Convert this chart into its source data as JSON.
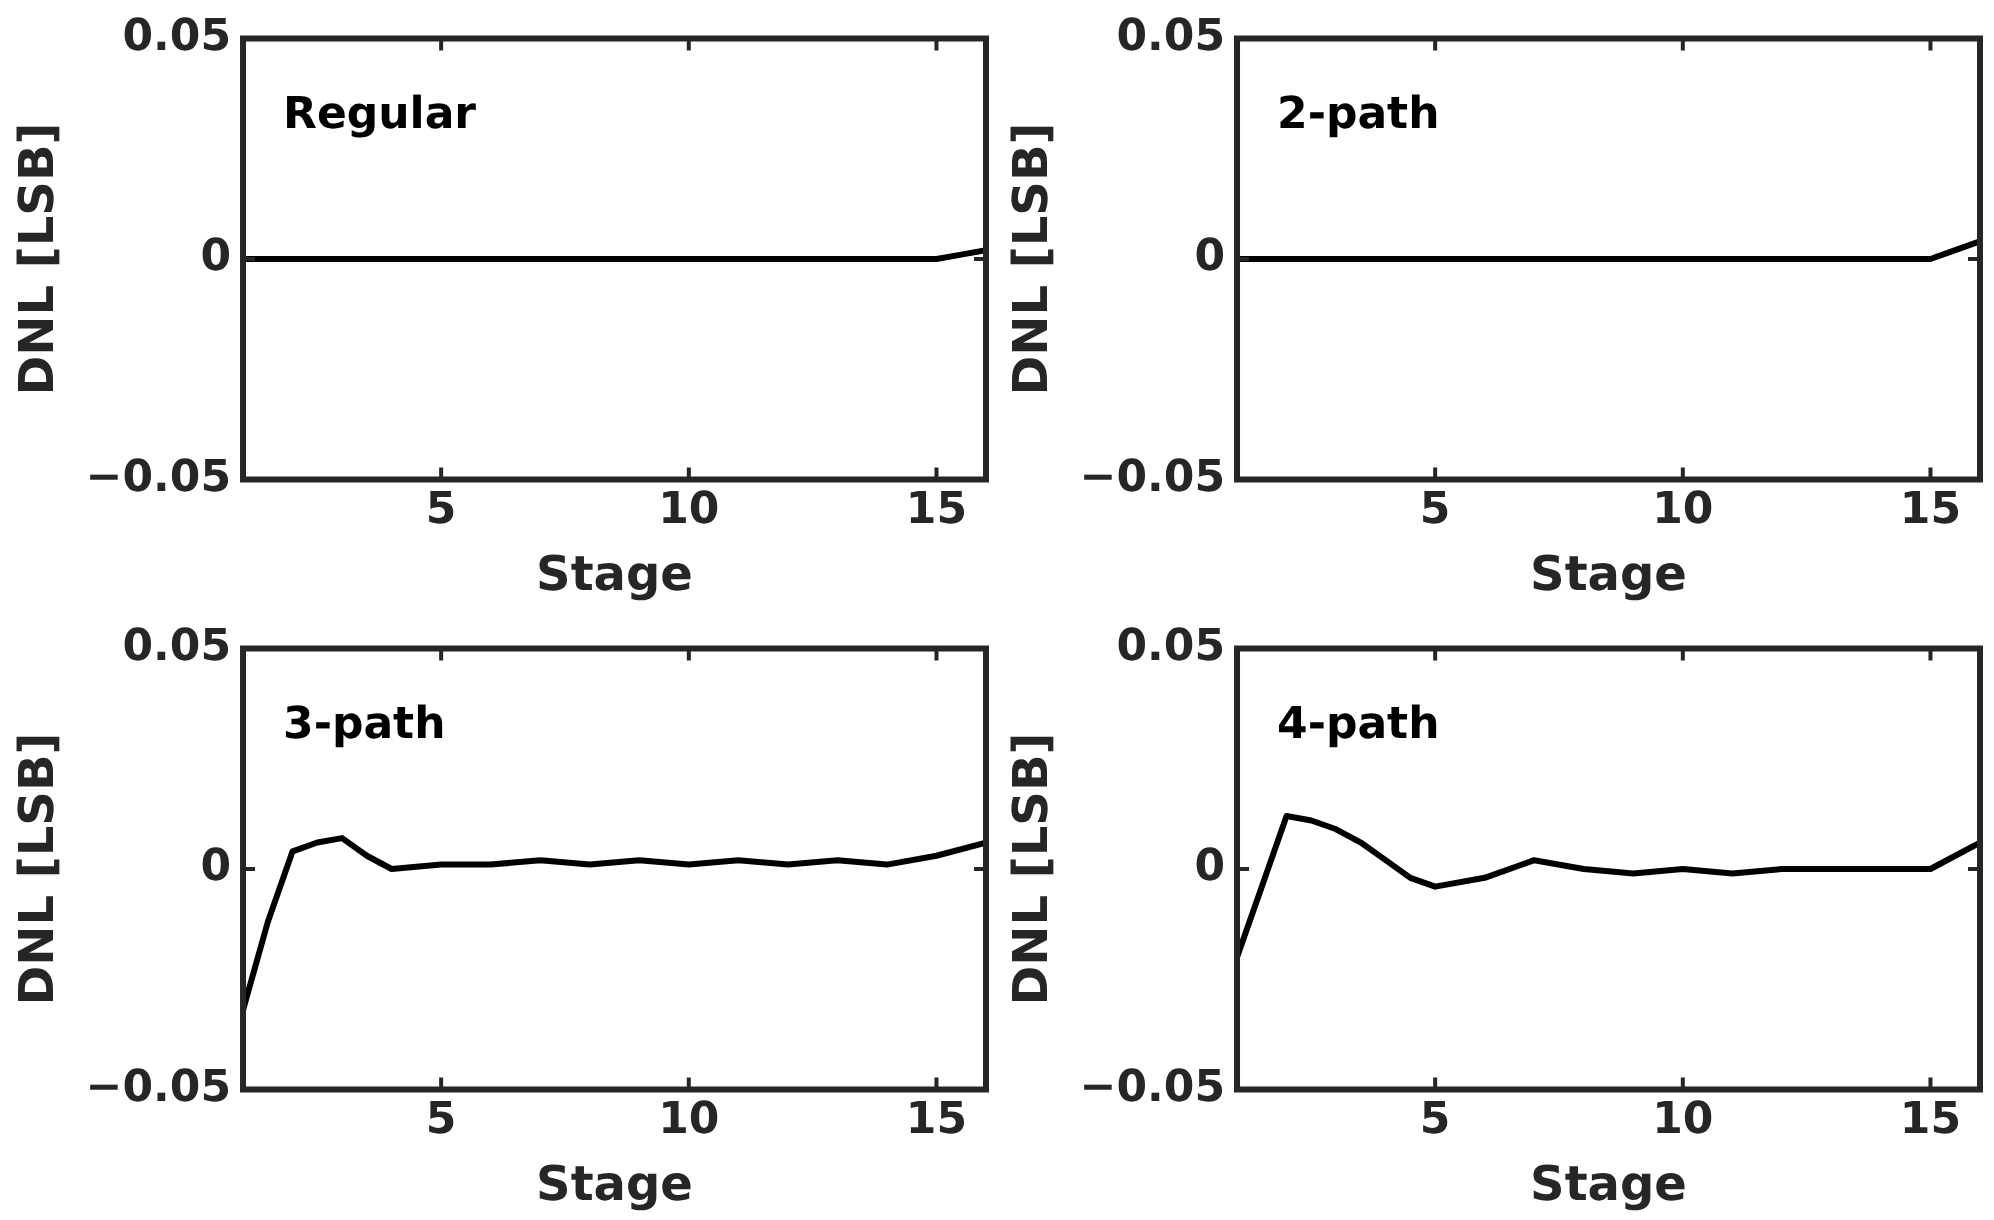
{
  "chart_data": [
    {
      "type": "line",
      "annotations": [
        "Regular"
      ],
      "xlabel": "Stage",
      "ylabel": "DNL [LSB]",
      "xlim": [
        1,
        16
      ],
      "xticks": [
        5,
        10,
        15
      ],
      "ylim": [
        -0.05,
        0.05
      ],
      "yticks": [
        -0.05,
        0,
        0.05
      ],
      "grid": false,
      "legend": false,
      "marker": "none",
      "series": [
        {
          "color": "#000000",
          "x": [
            1,
            2,
            4,
            6,
            8,
            10,
            12,
            14,
            15,
            15.5,
            16
          ],
          "values": [
            0,
            0,
            0,
            0,
            0,
            0,
            0,
            0,
            0,
            0.001,
            0.002
          ]
        }
      ]
    },
    {
      "type": "line",
      "annotations": [
        "2-path"
      ],
      "xlabel": "Stage",
      "ylabel": "DNL [LSB]",
      "xlim": [
        1,
        16
      ],
      "xticks": [
        5,
        10,
        15
      ],
      "ylim": [
        -0.05,
        0.05
      ],
      "yticks": [
        -0.05,
        0,
        0.05
      ],
      "grid": false,
      "legend": false,
      "marker": "none",
      "series": [
        {
          "color": "#000000",
          "x": [
            1,
            2,
            4,
            6,
            8,
            10,
            12,
            14,
            15,
            15.5,
            16
          ],
          "values": [
            0,
            0,
            0,
            0,
            0,
            0,
            0,
            0,
            0,
            0.002,
            0.004
          ]
        }
      ]
    },
    {
      "type": "line",
      "annotations": [
        "3-path"
      ],
      "xlabel": "Stage",
      "ylabel": "DNL [LSB]",
      "xlim": [
        1,
        16
      ],
      "xticks": [
        5,
        10,
        15
      ],
      "ylim": [
        -0.05,
        0.05
      ],
      "yticks": [
        -0.05,
        0,
        0.05
      ],
      "grid": false,
      "legend": false,
      "marker": "none",
      "series": [
        {
          "color": "#000000",
          "x": [
            1,
            1.5,
            2,
            2.5,
            3,
            3.5,
            4,
            5,
            6,
            7,
            8,
            9,
            10,
            11,
            12,
            13,
            14,
            15,
            16
          ],
          "values": [
            -0.032,
            -0.012,
            0.004,
            0.006,
            0.007,
            0.003,
            0,
            0.001,
            0.001,
            0.002,
            0.001,
            0.002,
            0.001,
            0.002,
            0.001,
            0.002,
            0.001,
            0.003,
            0.006
          ]
        }
      ]
    },
    {
      "type": "line",
      "annotations": [
        "4-path"
      ],
      "xlabel": "Stage",
      "ylabel": "DNL [LSB]",
      "xlim": [
        1,
        16
      ],
      "xticks": [
        5,
        10,
        15
      ],
      "ylim": [
        -0.05,
        0.05
      ],
      "yticks": [
        -0.05,
        0,
        0.05
      ],
      "grid": false,
      "legend": false,
      "marker": "none",
      "series": [
        {
          "color": "#000000",
          "x": [
            1,
            1.5,
            2,
            2.5,
            3,
            3.5,
            4,
            4.5,
            5,
            6,
            7,
            8,
            9,
            10,
            11,
            12,
            13,
            14,
            15,
            15.5,
            16
          ],
          "values": [
            -0.02,
            -0.004,
            0.012,
            0.011,
            0.009,
            0.006,
            0.002,
            -0.002,
            -0.004,
            -0.002,
            0.002,
            0,
            -0.001,
            0,
            -0.001,
            0,
            0,
            0,
            0,
            0.003,
            0.006
          ]
        }
      ]
    }
  ]
}
